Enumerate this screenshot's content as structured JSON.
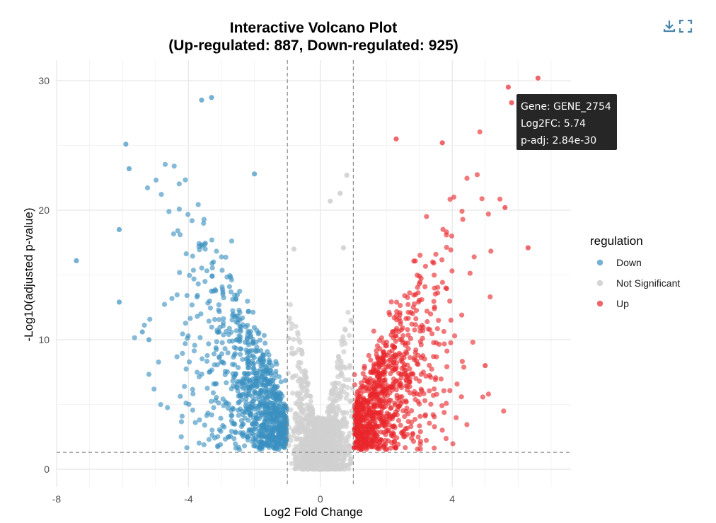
{
  "toolbar": {
    "download_icon": "download-icon",
    "fullscreen_icon": "fullscreen-icon",
    "icon_color": "#4a86ad"
  },
  "chart_data": {
    "type": "scatter",
    "title_line1": "Interactive Volcano Plot",
    "title_line2": "(Up-regulated: 887, Down-regulated: 925)",
    "xlabel": "Log2 Fold Change",
    "ylabel": "-Log10(adjusted p-value)",
    "xlim": [
      -8,
      7.5
    ],
    "ylim": [
      -1.5,
      31.5
    ],
    "x_ticks": [
      -8,
      -4,
      0,
      4
    ],
    "y_ticks": [
      0,
      10,
      20,
      30
    ],
    "grid": true,
    "thresholds": {
      "log2fc": [
        -1,
        1
      ],
      "neg_log10_padj": 1.3
    },
    "counts": {
      "up": 887,
      "down": 925
    },
    "legend": {
      "title": "regulation",
      "position": "right",
      "items": [
        {
          "label": "Down",
          "color": "#3a90c0"
        },
        {
          "label": "Not Significant",
          "color": "#d0d0d0"
        },
        {
          "label": "Up",
          "color": "#e8262c"
        }
      ]
    },
    "highlighted_points": {
      "down": [
        [
          -7.4,
          16.1
        ],
        [
          -6.1,
          12.9
        ],
        [
          -6.1,
          18.5
        ],
        [
          -5.9,
          25.1
        ],
        [
          -5.8,
          23.2
        ],
        [
          -3.6,
          28.5
        ],
        [
          -3.3,
          28.7
        ],
        [
          -2.0,
          22.8
        ],
        [
          -5.4,
          10.6
        ],
        [
          -5.2,
          10.0
        ]
      ],
      "not_significant": [
        [
          0.8,
          22.7
        ],
        [
          0.6,
          21.3
        ],
        [
          0.3,
          20.7
        ],
        [
          -0.8,
          17.0
        ],
        [
          0.7,
          17.1
        ],
        [
          0.0,
          0.2
        ]
      ],
      "up": [
        [
          6.6,
          30.2
        ],
        [
          5.7,
          29.5
        ],
        [
          5.8,
          28.3
        ],
        [
          2.3,
          25.5
        ],
        [
          3.7,
          25.2
        ],
        [
          6.3,
          17.1
        ],
        [
          5.6,
          20.2
        ],
        [
          5.0,
          8.0
        ],
        [
          1.1,
          2.1
        ]
      ]
    },
    "tooltip": {
      "gene": "Gene: GENE_2754",
      "log2fc": "Log2FC: 5.74",
      "padj": "p-adj: 2.84e-30",
      "x": 5.74,
      "y": 29.5
    }
  }
}
